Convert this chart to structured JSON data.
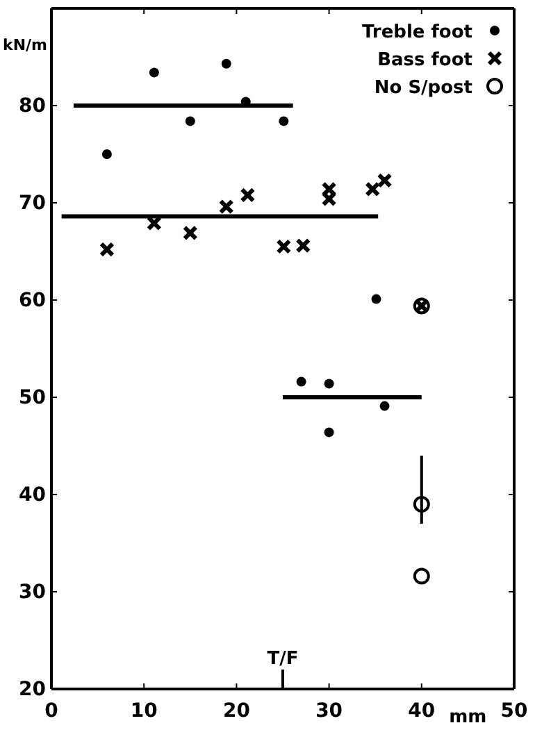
{
  "chart_data": {
    "type": "scatter",
    "ylabel": "kN/m",
    "xlabel": "mm",
    "xlim": [
      0,
      50
    ],
    "xticks": [
      0,
      10,
      20,
      30,
      40,
      50
    ],
    "ylim": [
      20,
      90
    ],
    "yticks": [
      20,
      30,
      40,
      50,
      60,
      70,
      80
    ],
    "legend": "top right",
    "grid": false,
    "annotations": [
      "T/F"
    ],
    "series": [
      {
        "name": "Treble foot",
        "color": "#000000",
        "marker": "circle",
        "x": [
          6,
          11.1,
          15,
          18.9,
          21,
          25.1,
          27,
          30,
          30,
          35.1,
          36
        ],
        "values": [
          75,
          83.4,
          78.4,
          84.3,
          80.4,
          78.4,
          51.6,
          51.4,
          46.4,
          60.1,
          49.1
        ]
      },
      {
        "name": "Bass foot",
        "color": "#000000",
        "marker": "cross",
        "x": [
          6,
          11.1,
          15,
          18.9,
          21.2,
          25.1,
          27.2,
          30,
          30,
          34.7,
          36,
          40
        ],
        "values": [
          65.2,
          67.9,
          66.9,
          69.6,
          70.8,
          65.5,
          65.6,
          71.4,
          70.4,
          71.4,
          72.3,
          59.4
        ]
      },
      {
        "name": "No S/post",
        "color": "#000000",
        "marker": "circle_open",
        "x": [
          40,
          40,
          40
        ],
        "values": [
          59.4,
          39,
          31.6
        ],
        "errors": [
          null,
          [
            37,
            44
          ],
          null
        ]
      },
      {
        "type": "line",
        "color": "#000000",
        "x": [
          2.4,
          26.1
        ],
        "values": [
          80,
          80
        ]
      },
      {
        "type": "line",
        "color": "#000000",
        "x": [
          1.1,
          35.3
        ],
        "values": [
          68.6,
          68.6
        ]
      },
      {
        "type": "line",
        "color": "#000000",
        "x": [
          25,
          40
        ],
        "values": [
          50,
          50
        ]
      }
    ]
  }
}
